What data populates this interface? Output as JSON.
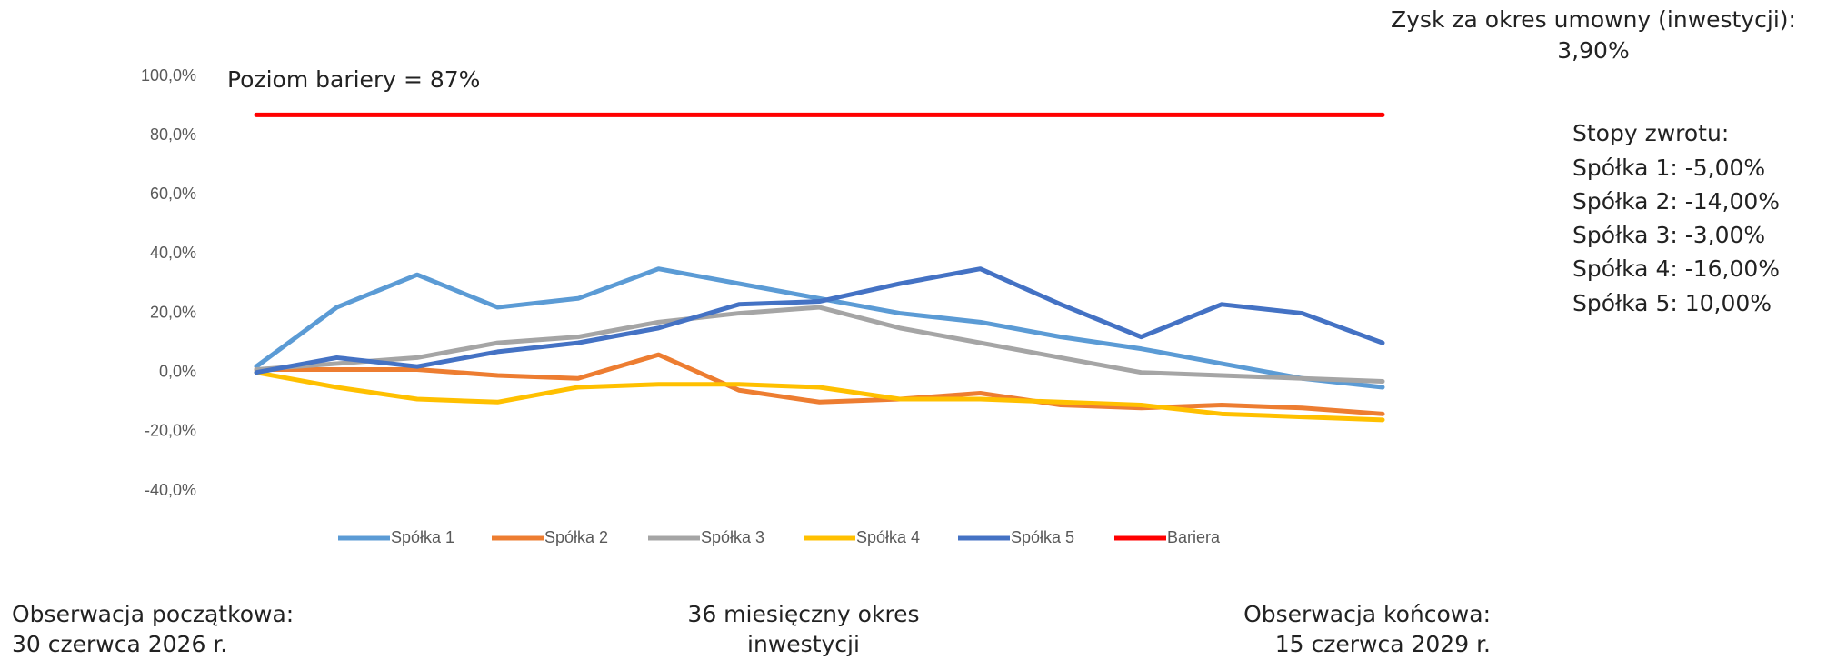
{
  "chart_data": {
    "type": "line",
    "annotation": "Poziom bariery = 87%",
    "ylim": [
      -40,
      100
    ],
    "yticks": [
      {
        "value": -40,
        "label": "-40,0%"
      },
      {
        "value": -20,
        "label": "-20,0%"
      },
      {
        "value": 0,
        "label": "0,0%"
      },
      {
        "value": 20,
        "label": "20,0%"
      },
      {
        "value": 40,
        "label": "40,0%"
      },
      {
        "value": 60,
        "label": "60,0%"
      },
      {
        "value": 80,
        "label": "80,0%"
      },
      {
        "value": 100,
        "label": "100,0%"
      }
    ],
    "legend": "bottom",
    "series": [
      {
        "name": "Spółka 1",
        "color": "#5b9bd5",
        "values": [
          2,
          22,
          33,
          22,
          25,
          35,
          30,
          25,
          20,
          17,
          12,
          8,
          3,
          -2,
          -5
        ]
      },
      {
        "name": "Spółka 2",
        "color": "#ed7d31",
        "values": [
          1,
          1,
          1,
          -1,
          -2,
          6,
          -6,
          -10,
          -9,
          -7,
          -11,
          -12,
          -11,
          -12,
          -14
        ]
      },
      {
        "name": "Spółka 3",
        "color": "#a5a5a5",
        "values": [
          1,
          3,
          5,
          10,
          12,
          17,
          20,
          22,
          15,
          10,
          5,
          0,
          -1,
          -2,
          -3
        ]
      },
      {
        "name": "Spółka 4",
        "color": "#ffc000",
        "values": [
          0,
          -5,
          -9,
          -10,
          -5,
          -4,
          -4,
          -5,
          -9,
          -9,
          -10,
          -11,
          -14,
          -15,
          -16
        ]
      },
      {
        "name": "Spółka 5",
        "color": "#4472c4",
        "values": [
          0,
          5,
          2,
          7,
          10,
          15,
          23,
          24,
          30,
          35,
          23,
          12,
          23,
          20,
          10
        ]
      },
      {
        "name": "Bariera",
        "color": "#ff0000",
        "values": [
          87,
          87,
          87,
          87,
          87,
          87,
          87,
          87,
          87,
          87,
          87,
          87,
          87,
          87,
          87
        ]
      }
    ]
  },
  "summary": {
    "title": "Zysk za okres umowny (inwestycji):",
    "value": "3,90%"
  },
  "returns": {
    "title": "Stopy zwrotu:",
    "lines": [
      "Spółka 1: -5,00%",
      "Spółka 2: -14,00%",
      "Spółka 3: -3,00%",
      "Spółka 4: -16,00%",
      "Spółka 5: 10,00%"
    ]
  },
  "footer": {
    "start": [
      "Obserwacja początkowa:",
      "30 czerwca 2026 r."
    ],
    "middle": [
      "36 miesięczny okres",
      "inwestycji"
    ],
    "end": [
      "Obserwacja  końcowa:",
      "15 czerwca 2029 r."
    ]
  }
}
